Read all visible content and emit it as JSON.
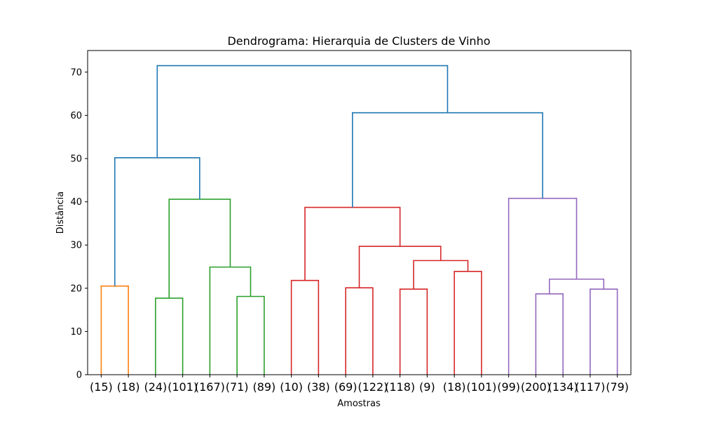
{
  "chart_data": {
    "type": "dendrogram",
    "title": "Dendrograma: Hierarquia de Clusters de Vinho",
    "xlabel": "Amostras",
    "ylabel": "Distância",
    "ylim": [
      0,
      75
    ],
    "yticks": [
      0,
      10,
      20,
      30,
      40,
      50,
      60,
      70
    ],
    "grid": false,
    "leaves": [
      "(15)",
      "(18)",
      "(24)",
      "(101)",
      "(167)",
      "(71)",
      "(89)",
      "(10)",
      "(38)",
      "(69)",
      "(122)",
      "(118)",
      "(9)",
      "(18)",
      "(101)",
      "(99)",
      "(200)",
      "(134)",
      "(117)",
      "(79)"
    ],
    "colors": {
      "above_threshold": "#1f77b4",
      "cluster_1": "#ff7f0e",
      "cluster_2": "#2ca02c",
      "cluster_3": "#d62728",
      "cluster_4": "#9467bd"
    },
    "merges": [
      {
        "left": "leaf:0",
        "right": "leaf:1",
        "height": 20.5,
        "color": "#ff7f0e"
      },
      {
        "left": "leaf:2",
        "right": "leaf:3",
        "height": 17.7,
        "color": "#2ca02c"
      },
      {
        "left": "leaf:5",
        "right": "leaf:6",
        "height": 18.1,
        "color": "#2ca02c"
      },
      {
        "left": "leaf:4",
        "right": "node:2",
        "height": 24.9,
        "color": "#2ca02c"
      },
      {
        "left": "node:1",
        "right": "node:3",
        "height": 40.6,
        "color": "#2ca02c"
      },
      {
        "left": "node:0",
        "right": "node:4",
        "height": 50.2,
        "color": "#1f77b4"
      },
      {
        "left": "leaf:7",
        "right": "leaf:8",
        "height": 21.8,
        "color": "#d62728"
      },
      {
        "left": "leaf:9",
        "right": "leaf:10",
        "height": 20.1,
        "color": "#d62728"
      },
      {
        "left": "leaf:11",
        "right": "leaf:12",
        "height": 19.8,
        "color": "#d62728"
      },
      {
        "left": "leaf:13",
        "right": "leaf:14",
        "height": 23.9,
        "color": "#d62728"
      },
      {
        "left": "node:8",
        "right": "node:9",
        "height": 26.4,
        "color": "#d62728"
      },
      {
        "left": "node:7",
        "right": "node:10",
        "height": 29.7,
        "color": "#d62728"
      },
      {
        "left": "node:6",
        "right": "node:11",
        "height": 38.7,
        "color": "#d62728"
      },
      {
        "left": "leaf:16",
        "right": "leaf:17",
        "height": 18.7,
        "color": "#9467bd"
      },
      {
        "left": "leaf:18",
        "right": "leaf:19",
        "height": 19.8,
        "color": "#9467bd"
      },
      {
        "left": "node:13",
        "right": "node:14",
        "height": 22.1,
        "color": "#9467bd"
      },
      {
        "left": "leaf:15",
        "right": "node:15",
        "height": 40.8,
        "color": "#9467bd"
      },
      {
        "left": "node:12",
        "right": "node:16",
        "height": 60.6,
        "color": "#1f77b4"
      },
      {
        "left": "node:5",
        "right": "node:17",
        "height": 71.5,
        "color": "#1f77b4"
      }
    ]
  }
}
